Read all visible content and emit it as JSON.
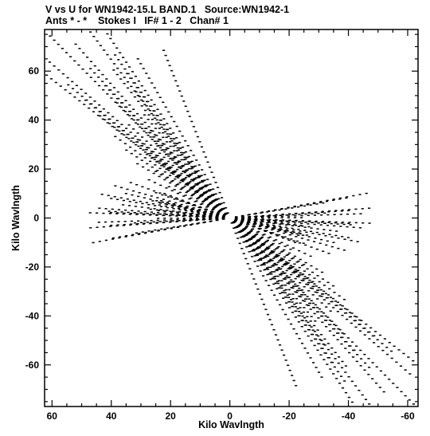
{
  "chart_data": {
    "type": "scatter",
    "title": "V vs U for WN1942-15.L BAND.1   Source:WN1942-1",
    "subtitle": "Ants * - *    Stokes I   IF# 1 - 2   Chan# 1",
    "xlabel": "Kilo Wavlngth",
    "ylabel": "Kilo Wavlngth",
    "xlim": [
      62.5,
      -63.5
    ],
    "ylim": [
      -77,
      77
    ],
    "x_ticks": [
      60,
      40,
      20,
      0,
      -20,
      -40,
      -60
    ],
    "x_tick_labels": [
      "60",
      "40",
      "20",
      "0",
      "-20",
      "-40",
      "-60"
    ],
    "y_ticks": [
      -60,
      -40,
      -20,
      0,
      20,
      40,
      60
    ],
    "y_tick_labels": [
      "-60",
      "-40",
      "-20",
      "0",
      "20",
      "40",
      "60"
    ],
    "grid": false,
    "marker": "small dash",
    "color": "#000000",
    "baselines": [
      {
        "u_end": 62,
        "v_end": 76
      },
      {
        "u_end": 52,
        "v_end": 71
      },
      {
        "u_end": 47,
        "v_end": 61
      },
      {
        "u_end": 42,
        "v_end": 54
      },
      {
        "u_end": 38,
        "v_end": 47
      },
      {
        "u_end": 34,
        "v_end": 38
      },
      {
        "u_end": 31,
        "v_end": 32
      },
      {
        "u_end": 28,
        "v_end": 26
      },
      {
        "u_end": 25,
        "v_end": 19
      },
      {
        "u_end": 31,
        "v_end": 65
      },
      {
        "u_end": 44,
        "v_end": 4
      },
      {
        "u_end": 40,
        "v_end": 8
      },
      {
        "u_end": 35,
        "v_end": 10
      },
      {
        "u_end": 26,
        "v_end": 7
      },
      {
        "u_end": 24,
        "v_end": 3
      },
      {
        "u_end": 22,
        "v_end": 10
      },
      {
        "u_end": 47,
        "v_end": -4
      },
      {
        "u_end": 40,
        "v_end": -3
      },
      {
        "u_end": 32,
        "v_end": -2
      }
    ],
    "earth_rotation_arc": 0.26
  }
}
